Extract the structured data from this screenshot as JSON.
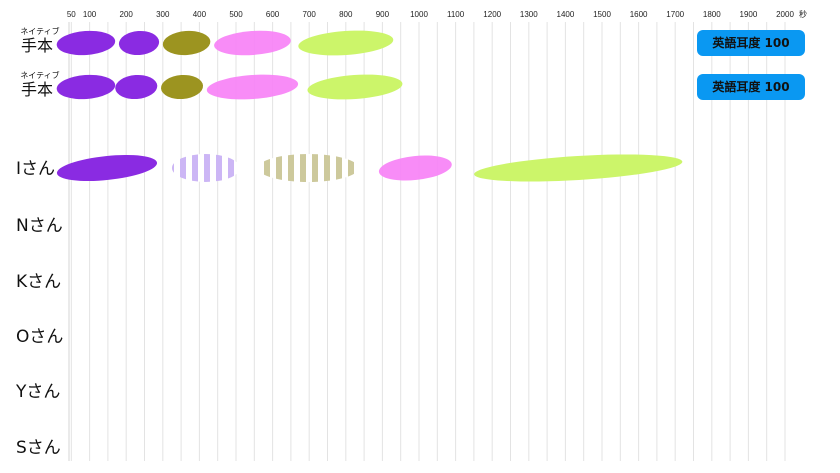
{
  "chart_data": {
    "type": "timeline",
    "x_unit": "秒",
    "xlim": [
      0,
      2000
    ],
    "x_ticks": [
      50,
      100,
      200,
      300,
      400,
      500,
      600,
      700,
      800,
      900,
      1000,
      1100,
      1200,
      1300,
      1400,
      1500,
      1600,
      1700,
      1800,
      1900,
      2000
    ],
    "grid": true,
    "segment_colors": {
      "purple": "#8a2be2",
      "olive": "#9c9420",
      "pink": "#f77ff6",
      "lime": "#ccf56a",
      "lavender_striped": "#b797f2",
      "khaki_striped": "#c4c08b"
    },
    "rows": [
      {
        "label": "ネイティブ\n手本",
        "badge": "英語耳度 100",
        "segments": [
          {
            "start": 10,
            "end": 170,
            "color": "purple",
            "style": "solid"
          },
          {
            "start": 180,
            "end": 290,
            "color": "purple",
            "style": "solid"
          },
          {
            "start": 300,
            "end": 430,
            "color": "olive",
            "style": "solid"
          },
          {
            "start": 440,
            "end": 650,
            "color": "pink",
            "style": "solid"
          },
          {
            "start": 670,
            "end": 930,
            "color": "lime",
            "style": "solid"
          }
        ]
      },
      {
        "label": "ネイティブ\n手本",
        "badge": "英語耳度 100",
        "segments": [
          {
            "start": 10,
            "end": 170,
            "color": "purple",
            "style": "solid"
          },
          {
            "start": 170,
            "end": 285,
            "color": "purple",
            "style": "solid"
          },
          {
            "start": 295,
            "end": 410,
            "color": "olive",
            "style": "solid"
          },
          {
            "start": 420,
            "end": 670,
            "color": "pink",
            "style": "solid"
          },
          {
            "start": 695,
            "end": 955,
            "color": "lime",
            "style": "solid"
          }
        ]
      },
      {
        "label": "Iさん",
        "segments": [
          {
            "start": 10,
            "end": 285,
            "color": "purple",
            "style": "solid"
          },
          {
            "start": 325,
            "end": 510,
            "color": "lavender_striped",
            "style": "striped"
          },
          {
            "start": 560,
            "end": 835,
            "color": "khaki_striped",
            "style": "striped"
          },
          {
            "start": 890,
            "end": 1090,
            "color": "pink",
            "style": "solid"
          },
          {
            "start": 1150,
            "end": 1720,
            "color": "lime",
            "style": "solid"
          }
        ]
      },
      {
        "label": "Nさん",
        "segments": []
      },
      {
        "label": "Kさん",
        "segments": []
      },
      {
        "label": "Oさん",
        "segments": []
      },
      {
        "label": "Yさん",
        "segments": []
      },
      {
        "label": "Sさん",
        "segments": []
      }
    ]
  }
}
